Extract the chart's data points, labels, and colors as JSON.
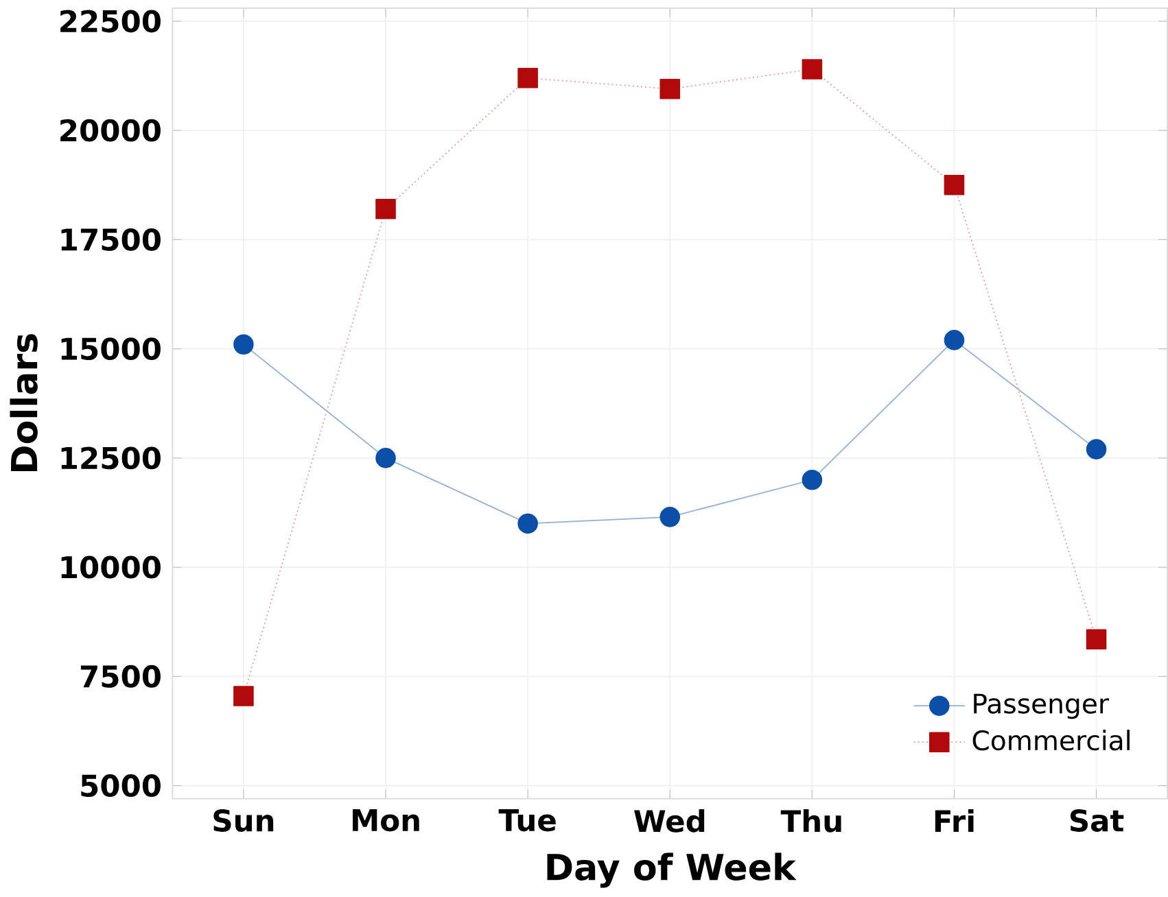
{
  "chart_data": {
    "type": "line",
    "xlabel": "Day of Week",
    "ylabel": "Dollars",
    "categories": [
      "Sun",
      "Mon",
      "Tue",
      "Wed",
      "Thu",
      "Fri",
      "Sat"
    ],
    "series": [
      {
        "name": "Passenger",
        "color": "#0b4fa8",
        "marker": "circle",
        "line_style": "solid",
        "values": [
          15100,
          12500,
          11000,
          11150,
          12000,
          15200,
          12700
        ]
      },
      {
        "name": "Commercial",
        "color": "#b20a0a",
        "marker": "square",
        "line_style": "dotted",
        "values": [
          7050,
          18200,
          21200,
          20950,
          21400,
          18750,
          8350
        ]
      }
    ],
    "ylim": [
      4700,
      22800
    ],
    "yticks": [
      5000,
      7500,
      10000,
      12500,
      15000,
      17500,
      20000,
      22500
    ],
    "grid": true,
    "legend": "bottom right"
  }
}
